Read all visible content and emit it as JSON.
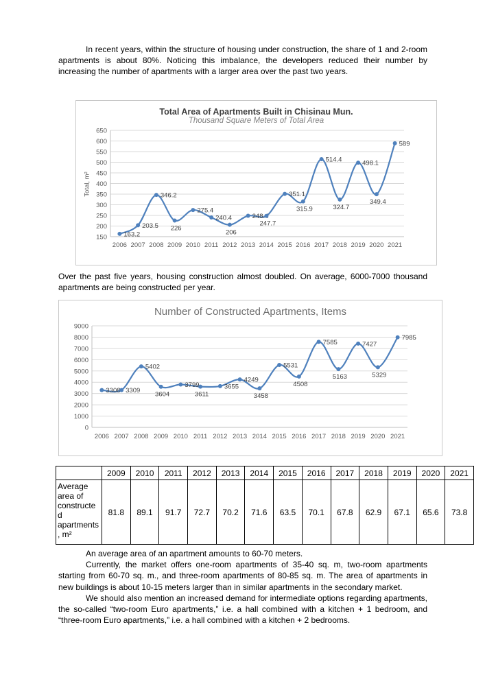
{
  "paragraphs": {
    "intro": "In recent years, within the structure of housing under construction, the share of 1 and 2-room apartments is about 80%. Noticing this imbalance, the developers reduced their number by increasing the number of apartments with a larger area over the past two years.",
    "between_charts": "Over the past five years, housing construction almost doubled. On average, 6000-7000 thousand apartments are being constructed per year.",
    "avg_area": "An average area of an apartment amounts to 60-70 meters.",
    "market": "Currently, the market offers one-room apartments of 35-40 sq. m, two-room apartments starting from 60-70 sq. m., and three-room apartments of 80-85 sq. m. The area of apartments in new buildings is about 10-15 meters larger than in similar apartments in the secondary market.",
    "euro": "We should also mention an increased demand for intermediate options regarding apartments, the so-called “two-room Euro apartments,” i.e. a hall combined with a kitchen + 1 bedroom, and “three-room Euro apartments,” i.e. a hall combined with a kitchen + 2 bedrooms."
  },
  "chart_data": [
    {
      "type": "line",
      "title": "Total Area of Apartments Built in Chisinau Mun.",
      "subtitle": "Thousand Square Meters of Total Area",
      "ylabel": "Total, m²",
      "xlabel": "",
      "categories": [
        "2006",
        "2007",
        "2008",
        "2009",
        "2010",
        "2011",
        "2012",
        "2013",
        "2014",
        "2015",
        "2016",
        "2017",
        "2018",
        "2019",
        "2020",
        "2021"
      ],
      "values": [
        163.2,
        203.5,
        346.2,
        226,
        275.4,
        240.4,
        206,
        248.4,
        247.7,
        351.1,
        315.9,
        514.4,
        324.7,
        498.1,
        349.4,
        589
      ],
      "ylim": [
        150,
        650
      ],
      "ytick_step": 50,
      "grid": true,
      "legend": "none",
      "line_color": "#4F81BD"
    },
    {
      "type": "line",
      "title": "Number of Constructed Apartments, Items",
      "subtitle": "",
      "ylabel": "",
      "xlabel": "",
      "categories": [
        "2006",
        "2007",
        "2008",
        "2009",
        "2010",
        "2011",
        "2012",
        "2013",
        "2014",
        "2015",
        "2016",
        "2017",
        "2018",
        "2019",
        "2020",
        "2021"
      ],
      "values": [
        3308,
        3309,
        5402,
        3604,
        3799,
        3611,
        3655,
        4249,
        3458,
        5531,
        4508,
        7585,
        5163,
        7427,
        5329,
        7985
      ],
      "ylim": [
        0,
        9000
      ],
      "ytick_step": 1000,
      "grid": true,
      "legend": "none",
      "line_color": "#4F81BD"
    }
  ],
  "table": {
    "header": [
      "",
      "2009",
      "2010",
      "2011",
      "2012",
      "2013",
      "2014",
      "2015",
      "2016",
      "2017",
      "2018",
      "2019",
      "2020",
      "2021"
    ],
    "row_label": "Average area of constructed apartments, m²",
    "values": [
      "81.8",
      "89.1",
      "91.7",
      "72.7",
      "70.2",
      "71.6",
      "63.5",
      "70.1",
      "67.8",
      "62.9",
      "67.1",
      "65.6",
      "73.8"
    ]
  },
  "colors": {
    "line": "#4F81BD",
    "grid": "#D9D9D9",
    "axis_text": "#595959",
    "label_text": "#404040",
    "axis_line": "#BFBFBF"
  }
}
